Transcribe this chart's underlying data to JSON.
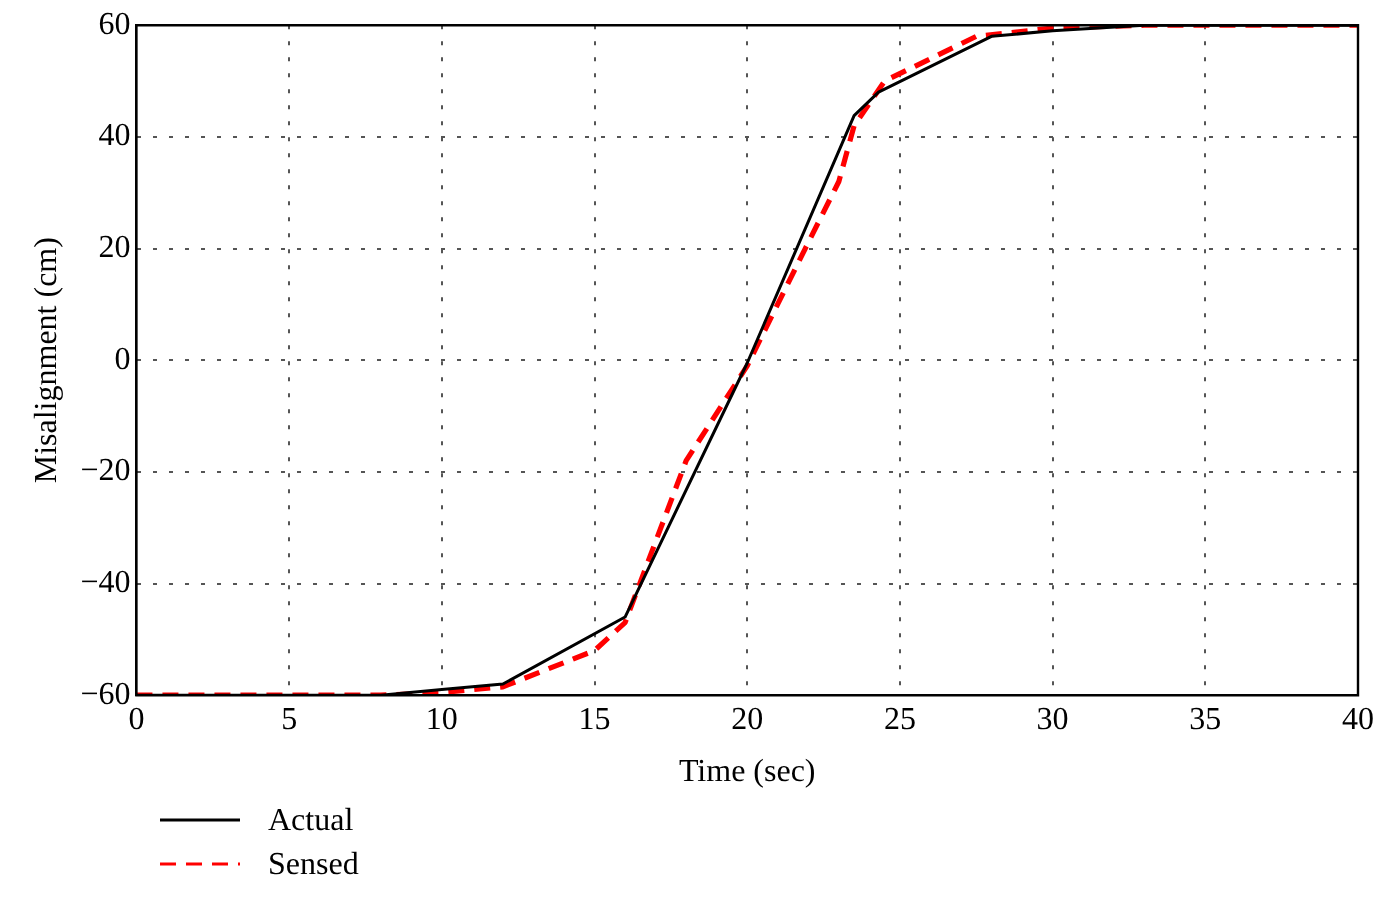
{
  "chart_data": {
    "type": "line",
    "xlabel": "Time (sec)",
    "ylabel": "Misalignment (cm)",
    "xlim": [
      0,
      40
    ],
    "xticks": [
      0,
      5,
      10,
      15,
      20,
      25,
      30,
      35,
      40
    ],
    "ylim": [
      -60,
      60
    ],
    "yticks": [
      -60,
      -40,
      -20,
      0,
      20,
      40,
      60
    ],
    "grid": true,
    "legend": "bottom",
    "marker": "none",
    "series": [
      {
        "name": "Actual",
        "color": "#000000",
        "line_style": "solid",
        "x": [
          0,
          8,
          10,
          12,
          16,
          20,
          23.5,
          24.3,
          28,
          30,
          33,
          40
        ],
        "values": [
          -60,
          -60,
          -59,
          -58,
          -46,
          -0.5,
          43.8,
          48,
          58,
          59,
          60,
          60
        ]
      },
      {
        "name": "Sensed",
        "color": "#ff0000",
        "line_style": "dashed",
        "x": [
          0,
          8,
          10,
          12,
          15,
          16,
          18,
          20,
          21.9,
          23,
          23.5,
          24.5,
          27.5,
          30,
          33,
          40
        ],
        "values": [
          -60,
          -60,
          -59.5,
          -58.5,
          -52,
          -47,
          -18,
          -1,
          20,
          32,
          42,
          50,
          58,
          59.5,
          60,
          60
        ]
      }
    ]
  }
}
